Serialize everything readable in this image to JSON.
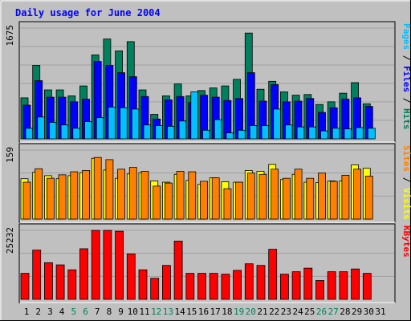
{
  "title": "Daily usage for June 2004",
  "colors": {
    "background": "#c0c0c0",
    "title": "#0000ff",
    "hits": "#00805c",
    "files": "#0000ff",
    "pages": "#00c0ff",
    "visits": "#ffff00",
    "sites": "#ff8000",
    "kbytes": "#ff0000",
    "weekend_day": "#00805c",
    "weekday": "#000000",
    "gridline": "#a0a0a0"
  },
  "chart_data": [
    {
      "type": "bar",
      "label_left": "1675",
      "label_right": [
        "Pages",
        "Files",
        "Hits"
      ],
      "label_right_sep": "/",
      "ylim": [
        0,
        1675
      ],
      "categories": [
        "1",
        "2",
        "3",
        "4",
        "5",
        "6",
        "7",
        "8",
        "9",
        "10",
        "11",
        "12",
        "13",
        "14",
        "15",
        "16",
        "17",
        "18",
        "19",
        "20",
        "21",
        "22",
        "23",
        "24",
        "25",
        "26",
        "27",
        "28",
        "29",
        "30",
        "31"
      ],
      "weekend_days": [
        "5",
        "6",
        "12",
        "13",
        "19",
        "20",
        "26",
        "27"
      ],
      "series": [
        {
          "name": "Hits",
          "values": [
            620,
            1110,
            740,
            740,
            650,
            800,
            1270,
            1510,
            1330,
            1470,
            740,
            370,
            650,
            830,
            650,
            730,
            770,
            800,
            900,
            1600,
            750,
            870,
            710,
            660,
            670,
            520,
            560,
            690,
            850,
            530,
            0
          ]
        },
        {
          "name": "Files",
          "values": [
            510,
            880,
            630,
            630,
            560,
            600,
            1170,
            1110,
            1000,
            940,
            640,
            300,
            590,
            640,
            550,
            660,
            630,
            580,
            610,
            1000,
            570,
            820,
            560,
            570,
            610,
            400,
            470,
            600,
            620,
            490,
            0
          ]
        },
        {
          "name": "Pages",
          "values": [
            160,
            330,
            250,
            210,
            160,
            260,
            320,
            480,
            470,
            450,
            210,
            200,
            190,
            270,
            710,
            130,
            290,
            90,
            130,
            200,
            200,
            450,
            210,
            180,
            180,
            120,
            160,
            150,
            170,
            160,
            0
          ]
        }
      ]
    },
    {
      "type": "bar",
      "label_left": "159",
      "label_right": [
        "Sites",
        "Visits"
      ],
      "label_right_sep": "/",
      "ylim": [
        0,
        159
      ],
      "categories": [
        "1",
        "2",
        "3",
        "4",
        "5",
        "6",
        "7",
        "8",
        "9",
        "10",
        "11",
        "12",
        "13",
        "14",
        "15",
        "16",
        "17",
        "18",
        "19",
        "20",
        "21",
        "22",
        "23",
        "24",
        "25",
        "26",
        "27",
        "28",
        "29",
        "30",
        "31"
      ],
      "series": [
        {
          "name": "Visits",
          "values": [
            93,
            108,
            100,
            93,
            100,
            107,
            140,
            113,
            94,
            104,
            107,
            88,
            85,
            103,
            89,
            80,
            95,
            86,
            85,
            112,
            110,
            126,
            91,
            103,
            85,
            84,
            88,
            88,
            125,
            117,
            0
          ]
        },
        {
          "name": "Sites",
          "values": [
            85,
            116,
            94,
            102,
            109,
            112,
            142,
            137,
            115,
            119,
            110,
            76,
            83,
            110,
            109,
            87,
            95,
            70,
            85,
            106,
            103,
            115,
            94,
            115,
            94,
            106,
            87,
            101,
            115,
            99,
            0
          ]
        }
      ]
    },
    {
      "type": "bar",
      "label_left": "25232",
      "label_right": [
        "KBytes"
      ],
      "label_right_sep": "",
      "ylim": [
        0,
        25232
      ],
      "categories": [
        "1",
        "2",
        "3",
        "4",
        "5",
        "6",
        "7",
        "8",
        "9",
        "10",
        "11",
        "12",
        "13",
        "14",
        "15",
        "16",
        "17",
        "18",
        "19",
        "20",
        "21",
        "22",
        "23",
        "24",
        "25",
        "26",
        "27",
        "28",
        "29",
        "30",
        "31"
      ],
      "series": [
        {
          "name": "KBytes",
          "values": [
            9500,
            18000,
            13400,
            12600,
            10800,
            18500,
            25200,
            25200,
            24900,
            16600,
            10800,
            7700,
            12400,
            21300,
            9500,
            9500,
            9500,
            9200,
            10600,
            13000,
            12400,
            18300,
            9200,
            10100,
            11400,
            6900,
            10100,
            10100,
            11100,
            9500,
            0
          ]
        }
      ]
    }
  ]
}
